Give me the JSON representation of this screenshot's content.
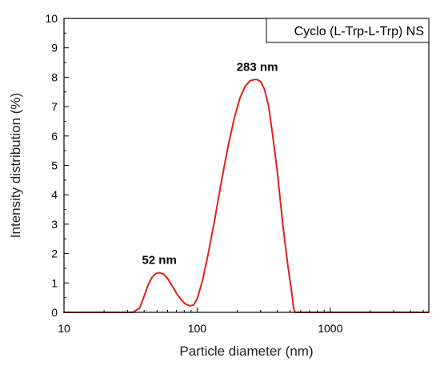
{
  "chart_data": {
    "type": "line",
    "title": "",
    "xlabel": "Particle diameter (nm)",
    "ylabel": "Intensity distribution (%)",
    "xscale": "log",
    "xlim": [
      10,
      5500
    ],
    "ylim": [
      0,
      10
    ],
    "grid": false,
    "legend_position": "top-right",
    "x_tick_labels": [
      "10",
      "100",
      "1000"
    ],
    "x_ticks": [
      10,
      100,
      1000
    ],
    "y_ticks": [
      0,
      1,
      2,
      3,
      4,
      5,
      6,
      7,
      8,
      9,
      10
    ],
    "y_tick_labels": [
      "0",
      "1",
      "2",
      "3",
      "4",
      "5",
      "6",
      "7",
      "8",
      "9",
      "10"
    ],
    "series": [
      {
        "name": "Cyclo (L-Trp-L-Trp) NS",
        "color": "#e0201c",
        "x": [
          10,
          33,
          37,
          40,
          43,
          46,
          49,
          52,
          56,
          60,
          65,
          70,
          76,
          82,
          88,
          94,
          100,
          110,
          120,
          135,
          150,
          170,
          190,
          210,
          230,
          250,
          270,
          283,
          300,
          320,
          345,
          370,
          400,
          440,
          480,
          520,
          530,
          545,
          1000,
          5500
        ],
        "y": [
          0,
          0,
          0.15,
          0.55,
          0.95,
          1.2,
          1.32,
          1.35,
          1.3,
          1.15,
          0.9,
          0.65,
          0.42,
          0.28,
          0.22,
          0.25,
          0.45,
          1.1,
          1.9,
          3.1,
          4.3,
          5.6,
          6.6,
          7.3,
          7.7,
          7.88,
          7.92,
          7.92,
          7.85,
          7.6,
          7.0,
          6.0,
          4.8,
          3.0,
          1.6,
          0.5,
          0.15,
          0,
          0,
          0
        ]
      }
    ],
    "annotations": [
      {
        "text": "52 nm",
        "x": 52,
        "y": 1.35
      },
      {
        "text": "283 nm",
        "x": 283,
        "y": 7.92
      }
    ]
  }
}
